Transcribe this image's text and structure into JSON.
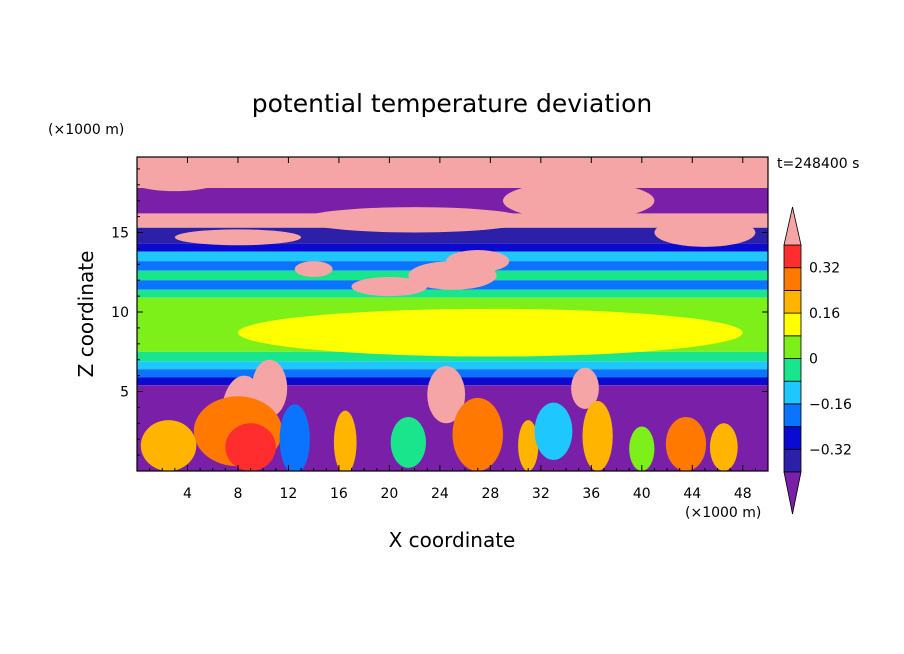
{
  "chart_data": {
    "type": "heatmap",
    "title": "potential temperature deviation",
    "xlabel": "X coordinate",
    "ylabel": "Z coordinate",
    "x_unit_label": "(×1000 m)",
    "y_unit_label": "(×1000 m)",
    "time_label": "t=248400 s",
    "xlim": [
      0,
      50
    ],
    "ylim": [
      0,
      19.75
    ],
    "x_ticks": [
      4,
      8,
      12,
      16,
      20,
      24,
      28,
      32,
      36,
      40,
      44,
      48
    ],
    "x_tick_labels": [
      "4",
      "8",
      "12",
      "16",
      "20",
      "24",
      "28",
      "32",
      "36",
      "40",
      "44",
      "48"
    ],
    "y_ticks": [
      5,
      10,
      15
    ],
    "y_tick_labels": [
      "5",
      "10",
      "15"
    ],
    "colorbar": {
      "levels": [
        -0.4,
        -0.32,
        -0.24,
        -0.16,
        -0.08,
        0,
        0.08,
        0.16,
        0.24,
        0.32,
        0.4
      ],
      "labeled_values": [
        0.32,
        0.16,
        0,
        -0.16,
        -0.32
      ],
      "labels": [
        "0.32",
        "0.16",
        "0",
        "−0.16",
        "−0.32"
      ],
      "colors": [
        "#7a1fa8",
        "#2c1fa8",
        "#0a0ad0",
        "#0a74ff",
        "#1ec8ff",
        "#19e68c",
        "#7df01a",
        "#ffff00",
        "#ffb400",
        "#ff7800",
        "#ff2d2d",
        "#f5a5a5"
      ],
      "extend": "both"
    },
    "bands": [
      {
        "z": [
          17.8,
          19.75
        ],
        "value": 0.45
      },
      {
        "z": [
          16.2,
          17.8
        ],
        "value": -0.45
      },
      {
        "z": [
          15.3,
          16.2
        ],
        "value": 0.45
      },
      {
        "z": [
          14.3,
          15.3
        ],
        "value": -0.36
      },
      {
        "z": [
          13.8,
          14.3
        ],
        "value": -0.28
      },
      {
        "z": [
          13.2,
          13.8
        ],
        "value": -0.12
      },
      {
        "z": [
          12.6,
          13.2
        ],
        "value": -0.2
      },
      {
        "z": [
          12.0,
          12.6
        ],
        "value": -0.04
      },
      {
        "z": [
          11.4,
          12.0
        ],
        "value": -0.2
      },
      {
        "z": [
          10.9,
          11.4
        ],
        "value": -0.04
      },
      {
        "z": [
          7.5,
          10.9
        ],
        "value": 0.03
      },
      {
        "z": [
          6.9,
          7.5
        ],
        "value": -0.04
      },
      {
        "z": [
          6.4,
          6.9
        ],
        "value": -0.12
      },
      {
        "z": [
          5.9,
          6.4
        ],
        "value": -0.2
      },
      {
        "z": [
          5.4,
          5.9
        ],
        "value": -0.28
      },
      {
        "z": [
          0,
          5.4
        ],
        "value": -0.45
      }
    ],
    "features": [
      {
        "kind": "blob",
        "x": 3,
        "z": 18.5,
        "rx": 4,
        "rz": 0.9,
        "value": 0.45
      },
      {
        "kind": "blob",
        "x": 22,
        "z": 15.8,
        "rx": 9,
        "rz": 0.8,
        "value": 0.45
      },
      {
        "kind": "blob",
        "x": 35,
        "z": 17.0,
        "rx": 6,
        "rz": 1.2,
        "value": 0.45
      },
      {
        "kind": "blob",
        "x": 45,
        "z": 15.0,
        "rx": 4,
        "rz": 0.9,
        "value": 0.45
      },
      {
        "kind": "blob",
        "x": 8,
        "z": 14.7,
        "rx": 5,
        "rz": 0.5,
        "value": 0.45
      },
      {
        "kind": "blob",
        "x": 14,
        "z": 12.7,
        "rx": 1.5,
        "rz": 0.5,
        "value": 0.45
      },
      {
        "kind": "blob",
        "x": 20,
        "z": 11.6,
        "rx": 3,
        "rz": 0.6,
        "value": 0.45
      },
      {
        "kind": "blob",
        "x": 25,
        "z": 12.3,
        "rx": 3.5,
        "rz": 0.9,
        "value": 0.45
      },
      {
        "kind": "blob",
        "x": 27,
        "z": 13.2,
        "rx": 2.5,
        "rz": 0.7,
        "value": 0.45
      },
      {
        "kind": "blob",
        "x": 8.5,
        "z": 3.5,
        "rx": 1.8,
        "rz": 2.5,
        "value": 0.45
      },
      {
        "kind": "blob",
        "x": 10.5,
        "z": 5.2,
        "rx": 1.4,
        "rz": 1.8,
        "value": 0.45
      },
      {
        "kind": "blob",
        "x": 24.5,
        "z": 4.8,
        "rx": 1.5,
        "rz": 1.8,
        "value": 0.45
      },
      {
        "kind": "blob",
        "x": 35.5,
        "z": 5.2,
        "rx": 1.1,
        "rz": 1.3,
        "value": 0.45
      },
      {
        "kind": "blob",
        "x": 8,
        "z": 2.5,
        "rx": 3.5,
        "rz": 2.2,
        "value": 0.26
      },
      {
        "kind": "blob",
        "x": 9,
        "z": 1.5,
        "rx": 2,
        "rz": 1.5,
        "value": 0.36
      },
      {
        "kind": "blob",
        "x": 2.5,
        "z": 1.6,
        "rx": 2.2,
        "rz": 1.6,
        "value": 0.2
      },
      {
        "kind": "blob",
        "x": 16.5,
        "z": 1.8,
        "rx": 0.9,
        "rz": 2,
        "value": 0.18
      },
      {
        "kind": "blob",
        "x": 27,
        "z": 2.3,
        "rx": 2,
        "rz": 2.3,
        "value": 0.24
      },
      {
        "kind": "blob",
        "x": 31,
        "z": 1.6,
        "rx": 0.8,
        "rz": 1.6,
        "value": 0.2
      },
      {
        "kind": "blob",
        "x": 36.5,
        "z": 2.2,
        "rx": 1.2,
        "rz": 2.2,
        "value": 0.16
      },
      {
        "kind": "blob",
        "x": 43.5,
        "z": 1.7,
        "rx": 1.6,
        "rz": 1.7,
        "value": 0.3
      },
      {
        "kind": "blob",
        "x": 46.5,
        "z": 1.5,
        "rx": 1.1,
        "rz": 1.5,
        "value": 0.2
      },
      {
        "kind": "blob",
        "x": 40,
        "z": 1.4,
        "rx": 1.0,
        "rz": 1.4,
        "value": 0.06
      },
      {
        "kind": "blob",
        "x": 21.5,
        "z": 1.8,
        "rx": 1.4,
        "rz": 1.6,
        "value": -0.06
      },
      {
        "kind": "blob",
        "x": 33,
        "z": 2.5,
        "rx": 1.5,
        "rz": 1.8,
        "value": -0.12
      },
      {
        "kind": "blob",
        "x": 12.5,
        "z": 2.0,
        "rx": 1.2,
        "rz": 2.2,
        "value": -0.2
      },
      {
        "kind": "blob",
        "x": 28,
        "z": 8.7,
        "rx": 20,
        "rz": 1.5,
        "value": 0.09
      }
    ]
  }
}
